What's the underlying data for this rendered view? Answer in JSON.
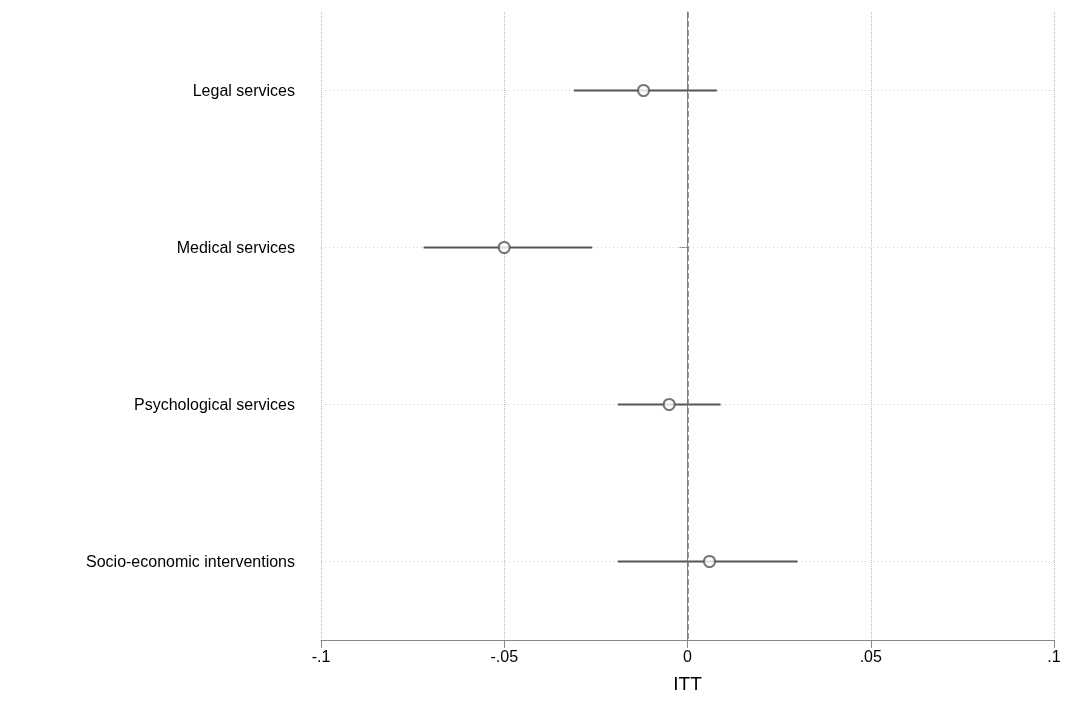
{
  "chart_data": {
    "type": "scatter",
    "orientation": "horizontal",
    "xlabel": "ITT",
    "categories": [
      "Legal services",
      "Medical services",
      "Psychological services",
      "Socio-economic interventions"
    ],
    "values": [
      -0.012,
      -0.05,
      -0.005,
      0.006
    ],
    "errors": [
      [
        -0.031,
        0.008
      ],
      [
        -0.072,
        -0.026
      ],
      [
        -0.019,
        0.009
      ],
      [
        -0.019,
        0.03
      ]
    ],
    "color": "#555555",
    "marker": "circle",
    "grid": true,
    "xlim": [
      -0.1,
      0.1
    ],
    "xticks": [
      {
        "value": -0.1,
        "label": "-.1"
      },
      {
        "value": -0.05,
        "label": "-.05"
      },
      0,
      {
        "value": 0.05,
        "label": ".05"
      },
      {
        "value": 0.1,
        "label": ".1"
      }
    ],
    "ref_lines": [
      {
        "axis": "x",
        "value": 0,
        "line_style": "dashed",
        "color": "#777777"
      }
    ]
  }
}
